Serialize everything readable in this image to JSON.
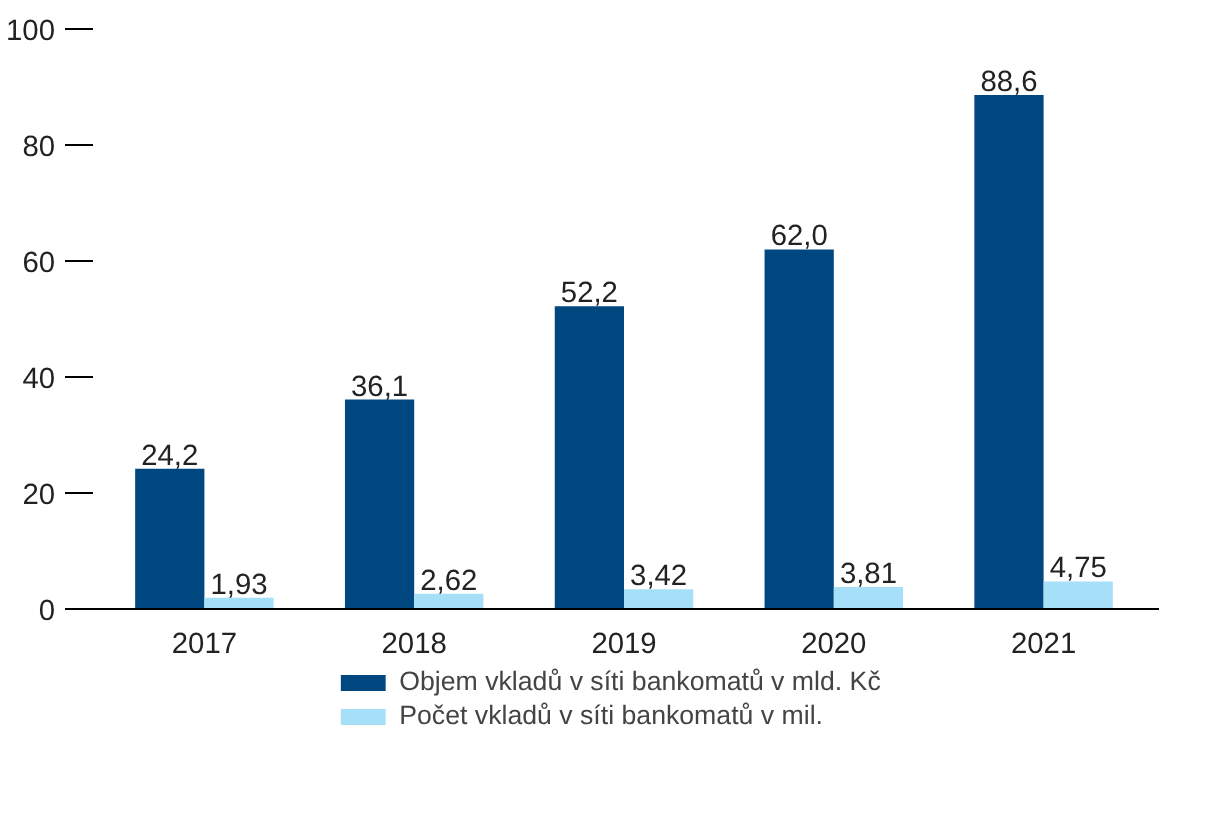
{
  "chart_data": {
    "type": "bar",
    "categories": [
      "2017",
      "2018",
      "2019",
      "2020",
      "2021"
    ],
    "series": [
      {
        "name": "Objem vkladů v síti bankomatů v mld. Kč",
        "color": "#00467f",
        "values": [
          24.2,
          36.1,
          52.2,
          62.0,
          88.6
        ],
        "value_labels": [
          "24,2",
          "36,1",
          "52,2",
          "62,0",
          "88,6"
        ]
      },
      {
        "name": "Počet vkladů v síti bankomatů v mil.",
        "color": "#a6e0f8",
        "values": [
          1.93,
          2.62,
          3.42,
          3.81,
          4.75
        ],
        "value_labels": [
          "1,93",
          "2,62",
          "3,42",
          "3,81",
          "4,75"
        ]
      }
    ],
    "ylim": [
      0,
      100
    ],
    "yticks": [
      0,
      20,
      40,
      60,
      80,
      100
    ],
    "grid": false,
    "legend": "bottom"
  }
}
